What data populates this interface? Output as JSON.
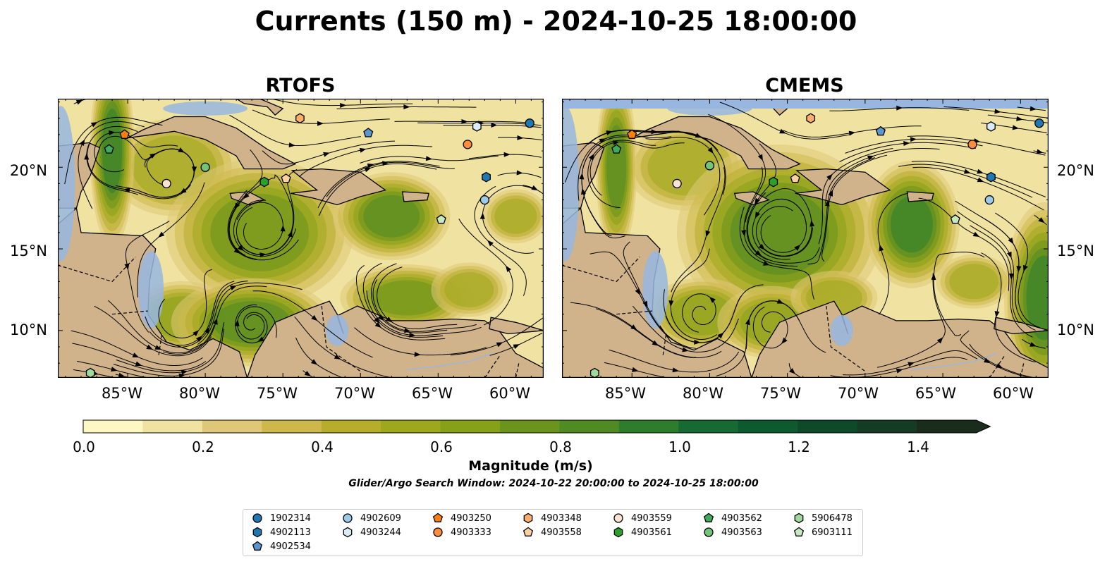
{
  "title": "Currents (150 m) - 2024-10-25 18:00:00",
  "panels": [
    {
      "title": "RTOFS"
    },
    {
      "title": "CMEMS"
    }
  ],
  "axes": {
    "lat_ticks": [
      "20°N",
      "15°N",
      "10°N"
    ],
    "lon_ticks": [
      "85°W",
      "80°W",
      "75°W",
      "70°W",
      "65°W",
      "60°W"
    ]
  },
  "colorbar": {
    "label": "Magnitude (m/s)",
    "ticks": [
      "0.0",
      "0.2",
      "0.4",
      "0.6",
      "0.8",
      "1.0",
      "1.2",
      "1.4"
    ],
    "range": [
      0.0,
      1.5
    ],
    "extend": "max",
    "colors": [
      "#fdf7c3",
      "#f0e2a0",
      "#dec877",
      "#cdb94b",
      "#b7ad2d",
      "#9ea81c",
      "#86a01a",
      "#6b941c",
      "#4f8a23",
      "#2d7d2d",
      "#166a32",
      "#0c5a2e",
      "#0e4a2a",
      "#163b24",
      "#1a2d1c"
    ]
  },
  "search_window": "Glider/Argo Search Window: 2024-10-22 20:00:00 to 2024-10-25 18:00:00",
  "map_colors": {
    "land": "#d0b38b",
    "water": "#97b7e0",
    "coast": "#000000",
    "rivers": "#9fb6d8"
  },
  "legend": [
    {
      "id": "1902314",
      "marker": "circle",
      "color": "#1f77b4"
    },
    {
      "id": "4902113",
      "marker": "hexagon",
      "color": "#1f77b4"
    },
    {
      "id": "4902534",
      "marker": "pentagon",
      "color": "#5b95cd"
    },
    {
      "id": "4902609",
      "marker": "circle",
      "color": "#9ecae9"
    },
    {
      "id": "4903244",
      "marker": "hexagon",
      "color": "#d9ecf8"
    },
    {
      "id": "4903250",
      "marker": "pentagon",
      "color": "#ff7f0e"
    },
    {
      "id": "4903333",
      "marker": "circle",
      "color": "#fd8d3c"
    },
    {
      "id": "4903348",
      "marker": "hexagon",
      "color": "#fdae6b"
    },
    {
      "id": "4903558",
      "marker": "pentagon",
      "color": "#fdd0a2"
    },
    {
      "id": "4903559",
      "marker": "circle",
      "color": "#fbe3d1"
    },
    {
      "id": "4903561",
      "marker": "hexagon",
      "color": "#2ca02c"
    },
    {
      "id": "4903562",
      "marker": "pentagon",
      "color": "#41ab5d"
    },
    {
      "id": "4903563",
      "marker": "circle",
      "color": "#74c476"
    },
    {
      "id": "5906478",
      "marker": "hexagon",
      "color": "#a1d99b"
    },
    {
      "id": "6903111",
      "marker": "pentagon",
      "color": "#c7e9c0"
    }
  ],
  "floats": {
    "RTOFS": [
      {
        "id": "4903250",
        "lon": -85.2,
        "lat": 22.0
      },
      {
        "id": "4903562",
        "lon": -86.2,
        "lat": 21.1
      },
      {
        "id": "4903559",
        "lon": -82.5,
        "lat": 19.0
      },
      {
        "id": "4903563",
        "lon": -80.0,
        "lat": 20.0
      },
      {
        "id": "4903561",
        "lon": -76.2,
        "lat": 19.1
      },
      {
        "id": "4903558",
        "lon": -74.8,
        "lat": 19.3
      },
      {
        "id": "4903348",
        "lon": -73.9,
        "lat": 23.0
      },
      {
        "id": "4902534",
        "lon": -69.5,
        "lat": 22.1
      },
      {
        "id": "4903244",
        "lon": -62.5,
        "lat": 22.5
      },
      {
        "id": "1902314",
        "lon": -59.1,
        "lat": 22.7
      },
      {
        "id": "4903333",
        "lon": -63.1,
        "lat": 21.4
      },
      {
        "id": "4902113",
        "lon": -61.9,
        "lat": 19.4
      },
      {
        "id": "4902609",
        "lon": -62.0,
        "lat": 18.0
      },
      {
        "id": "6903111",
        "lon": -64.8,
        "lat": 16.8
      },
      {
        "id": "5906478",
        "lon": -87.4,
        "lat": 7.4
      }
    ],
    "CMEMS": [
      {
        "id": "4903250",
        "lon": -85.0,
        "lat": 22.0
      },
      {
        "id": "4903562",
        "lon": -86.0,
        "lat": 21.1
      },
      {
        "id": "4903559",
        "lon": -82.1,
        "lat": 19.0
      },
      {
        "id": "4903563",
        "lon": -80.0,
        "lat": 20.1
      },
      {
        "id": "4903561",
        "lon": -75.9,
        "lat": 19.1
      },
      {
        "id": "4903558",
        "lon": -74.5,
        "lat": 19.3
      },
      {
        "id": "4903348",
        "lon": -73.5,
        "lat": 23.0
      },
      {
        "id": "4902534",
        "lon": -69.0,
        "lat": 22.2
      },
      {
        "id": "4903244",
        "lon": -61.9,
        "lat": 22.5
      },
      {
        "id": "1902314",
        "lon": -58.8,
        "lat": 22.7
      },
      {
        "id": "4903333",
        "lon": -63.1,
        "lat": 21.4
      },
      {
        "id": "4902113",
        "lon": -61.9,
        "lat": 19.4
      },
      {
        "id": "4902609",
        "lon": -62.0,
        "lat": 18.0
      },
      {
        "id": "6903111",
        "lon": -64.2,
        "lat": 16.8
      },
      {
        "id": "5906478",
        "lon": -87.4,
        "lat": 7.4
      }
    ]
  }
}
